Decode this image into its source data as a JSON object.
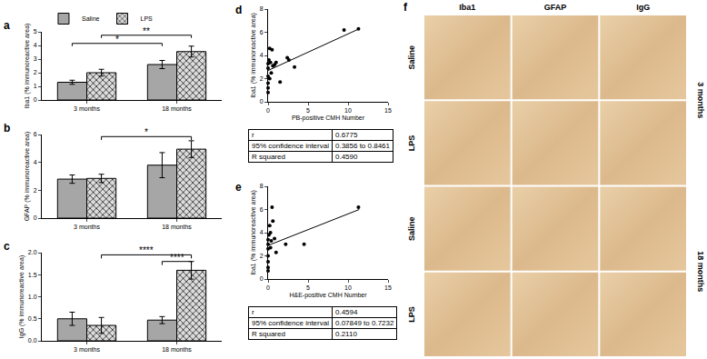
{
  "chart_data": [
    {
      "panel": "a",
      "type": "bar",
      "categories": [
        "3 months",
        "18 months"
      ],
      "y_label": "Iba1 (% immunoreactive area)",
      "ylim": [
        0,
        5
      ],
      "yticks": [
        0,
        1,
        2,
        3,
        4,
        5
      ],
      "legend": "upper left",
      "series": [
        {
          "name": "Saline",
          "color": "#a6a6a6",
          "marker": "solid",
          "values": [
            1.3,
            2.6
          ],
          "errors": [
            0.15,
            0.3
          ]
        },
        {
          "name": "LPS",
          "color": "#dcdcdc",
          "marker": "crosshatch",
          "values": [
            2.0,
            3.55
          ],
          "errors": [
            0.25,
            0.4
          ]
        }
      ],
      "brackets": [
        {
          "from": {
            "category": "3 months",
            "series": "Saline"
          },
          "to": {
            "category": "18 months",
            "series": "Saline"
          },
          "y": 4.15,
          "label": "*"
        },
        {
          "from": {
            "category": "3 months",
            "series": "LPS"
          },
          "to": {
            "category": "18 months",
            "series": "LPS"
          },
          "y": 4.75,
          "label": "**"
        }
      ]
    },
    {
      "panel": "b",
      "type": "bar",
      "categories": [
        "3 months",
        "18 months"
      ],
      "y_label": "GFAP (% immunoreactive area)",
      "ylim": [
        0,
        6
      ],
      "yticks": [
        0,
        2,
        4,
        6
      ],
      "series": [
        {
          "name": "Saline",
          "color": "#a6a6a6",
          "marker": "solid",
          "values": [
            2.8,
            3.8
          ],
          "errors": [
            0.3,
            0.9
          ]
        },
        {
          "name": "LPS",
          "color": "#dcdcdc",
          "marker": "crosshatch",
          "values": [
            2.85,
            4.95
          ],
          "errors": [
            0.3,
            0.6
          ]
        }
      ],
      "brackets": [
        {
          "from": {
            "category": "3 months",
            "series": "LPS"
          },
          "to": {
            "category": "18 months",
            "series": "LPS"
          },
          "y": 5.85,
          "label": "*"
        }
      ]
    },
    {
      "panel": "c",
      "type": "bar",
      "categories": [
        "3 months",
        "18 months"
      ],
      "y_label": "IgG (% immunoreactive area)",
      "ylim": [
        0,
        2
      ],
      "yticks": [
        {
          "value": 0,
          "label": "0.0"
        },
        {
          "value": 0.5,
          "label": "0.5"
        },
        {
          "value": 1,
          "label": "1.0"
        },
        {
          "value": 1.5,
          "label": "1.5"
        },
        {
          "value": 2,
          "label": "2.0"
        }
      ],
      "series": [
        {
          "name": "Saline",
          "color": "#a6a6a6",
          "marker": "solid",
          "values": [
            0.5,
            0.47
          ],
          "errors": [
            0.15,
            0.08
          ]
        },
        {
          "name": "LPS",
          "color": "#dcdcdc",
          "marker": "crosshatch",
          "values": [
            0.35,
            1.6
          ],
          "errors": [
            0.18,
            0.2
          ]
        }
      ],
      "brackets": [
        {
          "from": {
            "category": "3 months",
            "series": "LPS"
          },
          "to": {
            "category": "18 months",
            "series": "LPS"
          },
          "y": 1.95,
          "label": "****"
        },
        {
          "from": {
            "category": "18 months",
            "series": "Saline"
          },
          "to": {
            "category": "18 months",
            "series": "LPS"
          },
          "y": 1.8,
          "label": "****"
        }
      ]
    },
    {
      "panel": "d",
      "type": "scatter",
      "x_label": "PB-positive CMH Number",
      "y_label": "Iba1 (% immunoreactive area)",
      "xlim": [
        0,
        15
      ],
      "xticks": [
        0,
        5,
        10,
        15
      ],
      "ylim": [
        0,
        8
      ],
      "yticks": [
        0,
        2,
        4,
        6,
        8
      ],
      "color": "#000000",
      "x": [
        0,
        0,
        0,
        0,
        0,
        0,
        0.1,
        0.2,
        0.3,
        0.4,
        0.5,
        0.6,
        0.8,
        1.0,
        1.5,
        2.4,
        2.6,
        3.3,
        0.2,
        9.5,
        11.3
      ],
      "values": [
        3.3,
        2.9,
        2.2,
        1.6,
        1.2,
        0.8,
        3.6,
        4.6,
        3.4,
        2.5,
        4.5,
        3.1,
        3.2,
        3.4,
        1.7,
        3.8,
        3.6,
        3.0,
        2.0,
        6.2,
        6.3
      ],
      "fit_line": {
        "x": [
          0,
          11.4
        ],
        "y": [
          2.7,
          6.3
        ]
      },
      "table": [
        {
          "label": "r",
          "value": "0.6775"
        },
        {
          "label": "95% confidence interval",
          "value": "0.3856 to 0.8461"
        },
        {
          "label": "R squared",
          "value": "0.4590"
        }
      ]
    },
    {
      "panel": "e",
      "type": "scatter",
      "x_label": "H&E-positive CMH Number",
      "y_label": "Iba1 (% immunoreactive area)",
      "xlim": [
        0,
        15
      ],
      "xticks": [
        0,
        5,
        10,
        15
      ],
      "ylim": [
        0,
        8
      ],
      "yticks": [
        0,
        2,
        4,
        6,
        8
      ],
      "color": "#000000",
      "x": [
        0,
        0,
        0,
        0,
        0,
        0,
        0,
        0.1,
        0.2,
        0.3,
        0.4,
        0.5,
        0.6,
        0.8,
        1.0,
        2.2,
        4.5,
        0.3,
        11.3
      ],
      "values": [
        3.4,
        3.0,
        2.6,
        2.0,
        1.5,
        1.0,
        0.7,
        3.8,
        4.6,
        4.0,
        3.3,
        6.2,
        5.0,
        3.5,
        2.3,
        3.0,
        3.0,
        2.7,
        6.2
      ],
      "fit_line": {
        "x": [
          0,
          11.4
        ],
        "y": [
          2.9,
          6.0
        ]
      },
      "table": [
        {
          "label": "r",
          "value": "0.4594"
        },
        {
          "label": "95% confidence interval",
          "value": "0.07849 to 0.7232"
        },
        {
          "label": "R squared",
          "value": "0.2110"
        }
      ]
    }
  ],
  "image_panel": {
    "panel": "f",
    "columns": [
      "Iba1",
      "GFAP",
      "IgG"
    ],
    "groups": [
      {
        "label": "3 months",
        "rows": [
          "Saline",
          "LPS"
        ]
      },
      {
        "label": "18 months",
        "rows": [
          "Saline",
          "LPS"
        ]
      }
    ]
  }
}
